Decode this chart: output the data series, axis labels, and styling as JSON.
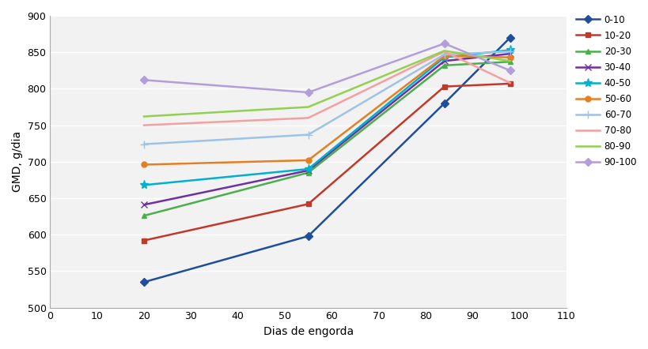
{
  "series": [
    {
      "label": "0-10",
      "color": "#1f4e9c",
      "marker": "D",
      "markersize": 5,
      "linewidth": 1.8,
      "x": [
        20,
        55,
        84,
        98
      ],
      "y": [
        535,
        598,
        780,
        870
      ]
    },
    {
      "label": "10-20",
      "color": "#c0392b",
      "marker": "s",
      "markersize": 5,
      "linewidth": 1.8,
      "x": [
        20,
        55,
        84,
        98
      ],
      "y": [
        592,
        642,
        803,
        807
      ]
    },
    {
      "label": "20-30",
      "color": "#4cae4c",
      "marker": "^",
      "markersize": 5,
      "linewidth": 1.8,
      "x": [
        20,
        55,
        84,
        98
      ],
      "y": [
        626,
        685,
        832,
        837
      ]
    },
    {
      "label": "30-40",
      "color": "#7030a0",
      "marker": "x",
      "markersize": 6,
      "linewidth": 1.8,
      "x": [
        20,
        55,
        84,
        98
      ],
      "y": [
        641,
        688,
        838,
        848
      ]
    },
    {
      "label": "40-50",
      "color": "#00b0cc",
      "marker": "*",
      "markersize": 8,
      "linewidth": 1.8,
      "x": [
        20,
        55,
        84,
        98
      ],
      "y": [
        668,
        690,
        843,
        853
      ]
    },
    {
      "label": "50-60",
      "color": "#e67e22",
      "marker": "o",
      "markersize": 5,
      "linewidth": 1.8,
      "x": [
        20,
        55,
        84,
        98
      ],
      "y": [
        696,
        702,
        845,
        843
      ]
    },
    {
      "label": "60-70",
      "color": "#9dc3e6",
      "marker": "+",
      "markersize": 7,
      "linewidth": 1.8,
      "x": [
        20,
        55,
        84,
        98
      ],
      "y": [
        724,
        737,
        847,
        851
      ]
    },
    {
      "label": "70-80",
      "color": "#f4a0a0",
      "marker": "None",
      "markersize": 5,
      "linewidth": 1.8,
      "x": [
        20,
        55,
        84,
        98
      ],
      "y": [
        750,
        760,
        851,
        808
      ]
    },
    {
      "label": "80-90",
      "color": "#92d050",
      "marker": "None",
      "markersize": 5,
      "linewidth": 1.8,
      "x": [
        20,
        55,
        84,
        98
      ],
      "y": [
        762,
        775,
        852,
        838
      ]
    },
    {
      "label": "90-100",
      "color": "#b39ddb",
      "marker": "D",
      "markersize": 5,
      "linewidth": 1.8,
      "x": [
        20,
        55,
        84,
        98
      ],
      "y": [
        812,
        795,
        862,
        825
      ]
    }
  ],
  "xlabel": "Dias de engorda",
  "ylabel": "GMD, g/dia",
  "xlim": [
    0,
    110
  ],
  "ylim": [
    500,
    900
  ],
  "xticks": [
    0,
    10,
    20,
    30,
    40,
    50,
    60,
    70,
    80,
    90,
    100,
    110
  ],
  "yticks": [
    500,
    550,
    600,
    650,
    700,
    750,
    800,
    850,
    900
  ],
  "background_color": "#ffffff",
  "plot_bg_color": "#f2f2f2",
  "grid_color": "#ffffff",
  "figsize": [
    8.2,
    4.42
  ],
  "dpi": 100,
  "legend_fontsize": 8.5,
  "axis_fontsize": 10,
  "tick_fontsize": 9
}
